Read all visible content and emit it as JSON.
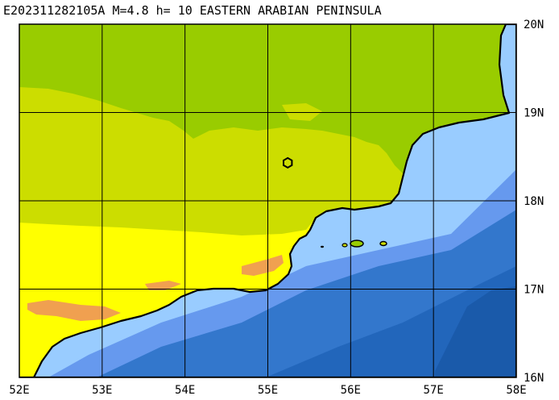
{
  "title": "E202311282105A M=4.8 h= 10 EASTERN ARABIAN PENINSULA",
  "map": {
    "lon_ticks": [
      "52E",
      "53E",
      "54E",
      "55E",
      "56E",
      "57E",
      "58E"
    ],
    "lat_ticks": [
      "20N",
      "19N",
      "18N",
      "17N",
      "16N"
    ],
    "lon_range": [
      52,
      58
    ],
    "lat_range": [
      16,
      20
    ],
    "grid": true,
    "epicenter": {
      "lon": 55.24,
      "lat": 18.43,
      "marker": "hexagon-outline"
    },
    "colors": {
      "land_low": "#ffff00",
      "land_mid": "#ccdd00",
      "land_high": "#99cc00",
      "highland": "#f0a050",
      "shallow_sea": "#99ccff",
      "mid_sea": "#6699ee",
      "deep_sea": "#3377cc",
      "deepest_sea": "#2266bb",
      "coastline": "#000000",
      "grid": "#000000"
    }
  }
}
